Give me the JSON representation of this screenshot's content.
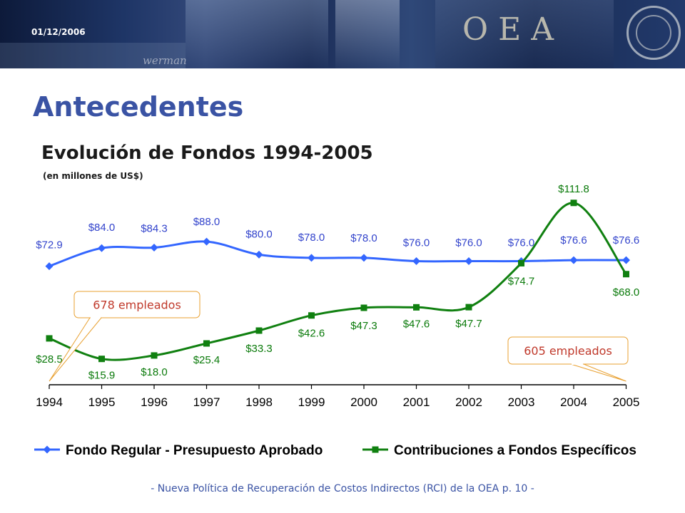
{
  "header": {
    "date": "01/12/2006",
    "logo_text": "OEA"
  },
  "page": {
    "heading": "Antecedentes",
    "footer": "- Nueva Política de Recuperación de Costos Indirectos (RCI) de la OEA p. 10 -"
  },
  "colors": {
    "heading": "#3a53a4",
    "series_regular": "#3366ff",
    "series_especificos": "#108010",
    "label_regular": "#3344cc",
    "label_especificos": "#0a7a0a",
    "callout_text": "#c0392b",
    "callout_border": "#e8a030"
  },
  "chart_data": {
    "type": "line",
    "title": "Evolución de Fondos 1994-2005",
    "subtitle": "(en millones de US$)",
    "x": [
      "1994",
      "1995",
      "1996",
      "1997",
      "1998",
      "1999",
      "2000",
      "2001",
      "2002",
      "2003",
      "2004",
      "2005"
    ],
    "ylim": [
      0,
      120
    ],
    "series": [
      {
        "name": "Fondo Regular - Presupuesto Aprobado",
        "marker": "diamond",
        "values": [
          72.9,
          84.0,
          84.3,
          88.0,
          80.0,
          78.0,
          78.0,
          76.0,
          76.0,
          76.0,
          76.6,
          76.6
        ],
        "labels": [
          "$72.9",
          "$84.0",
          "$84.3",
          "$88.0",
          "$80.0",
          "$78.0",
          "$78.0",
          "$76.0",
          "$76.0",
          "$76.0",
          "$76.6",
          "$76.6"
        ]
      },
      {
        "name": "Contribuciones a Fondos Específicos",
        "marker": "square",
        "values": [
          28.5,
          15.9,
          18.0,
          25.4,
          33.3,
          42.6,
          47.3,
          47.6,
          47.7,
          74.7,
          111.8,
          68.0
        ],
        "labels": [
          "$28.5",
          "$15.9",
          "$18.0",
          "$25.4",
          "$33.3",
          "$42.6",
          "$47.3",
          "$47.6",
          "$47.7",
          "$74.7",
          "$111.8",
          "$68.0"
        ]
      }
    ],
    "annotations": [
      {
        "text": "678 empleados",
        "x": "1994"
      },
      {
        "text": "605 empleados",
        "x": "2005"
      }
    ],
    "legend_position": "bottom",
    "grid": false
  }
}
